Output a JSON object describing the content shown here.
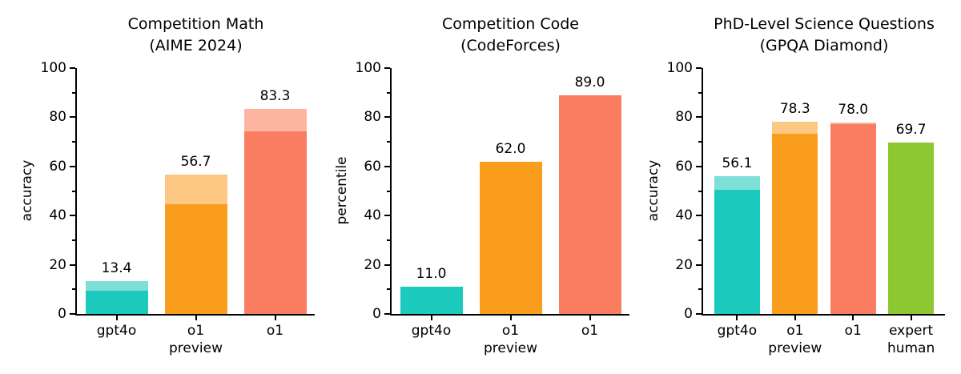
{
  "figure": {
    "background": "#ffffff",
    "text_color": "#000000",
    "axis_color": "#000000"
  },
  "palette": {
    "teal": {
      "solid": "#1bc9bd",
      "light": "#7fdfd7"
    },
    "orange": {
      "solid": "#fa9d1c",
      "light": "#fcc883"
    },
    "coral": {
      "solid": "#fa7d61",
      "light": "#fcb5a1"
    },
    "green": {
      "solid": "#8cc832",
      "light": "#8cc832"
    }
  },
  "chart_data": [
    {
      "type": "bar",
      "title": "Competition Math\n(AIME 2024)",
      "ylabel": "accuracy",
      "ylim": [
        0,
        100
      ],
      "yticks": [
        0,
        20,
        40,
        60,
        80,
        100
      ],
      "minor_yticks": [
        10,
        30,
        50,
        70,
        90
      ],
      "grid": false,
      "legend_position": "none",
      "categories": [
        "gpt4o",
        "o1\npreview",
        "o1"
      ],
      "bar_colors": [
        "teal",
        "orange",
        "coral"
      ],
      "series": [
        {
          "name": "solid-lower-segment",
          "values": [
            9.3,
            44.6,
            74.4
          ]
        },
        {
          "name": "total-shaded-top",
          "values": [
            13.4,
            56.7,
            83.3
          ]
        }
      ],
      "bar_value_labels": [
        "13.4",
        "56.7",
        "83.3"
      ]
    },
    {
      "type": "bar",
      "title": "Competition Code\n(CodeForces)",
      "ylabel": "percentile",
      "ylim": [
        0,
        100
      ],
      "yticks": [
        0,
        20,
        40,
        60,
        80,
        100
      ],
      "minor_yticks": [
        10,
        30,
        50,
        70,
        90
      ],
      "grid": false,
      "legend_position": "none",
      "categories": [
        "gpt4o",
        "o1\npreview",
        "o1"
      ],
      "bar_colors": [
        "teal",
        "orange",
        "coral"
      ],
      "series": [
        {
          "name": "solid-lower-segment",
          "values": [
            11.0,
            62.0,
            89.0
          ]
        },
        {
          "name": "total-shaded-top",
          "values": [
            11.0,
            62.0,
            89.0
          ]
        }
      ],
      "bar_value_labels": [
        "11.0",
        "62.0",
        "89.0"
      ]
    },
    {
      "type": "bar",
      "title": "PhD-Level Science Questions\n(GPQA Diamond)",
      "ylabel": "accuracy",
      "ylim": [
        0,
        100
      ],
      "yticks": [
        0,
        20,
        40,
        60,
        80,
        100
      ],
      "minor_yticks": [
        10,
        30,
        50,
        70,
        90
      ],
      "grid": false,
      "legend_position": "none",
      "categories": [
        "gpt4o",
        "o1\npreview",
        "o1",
        "expert\nhuman"
      ],
      "bar_colors": [
        "teal",
        "orange",
        "coral",
        "green"
      ],
      "series": [
        {
          "name": "solid-lower-segment",
          "values": [
            50.6,
            73.3,
            77.3,
            69.7
          ]
        },
        {
          "name": "total-shaded-top",
          "values": [
            56.1,
            78.3,
            78.0,
            69.7
          ]
        }
      ],
      "bar_value_labels": [
        "56.1",
        "78.3",
        "78.0",
        "69.7"
      ]
    }
  ]
}
